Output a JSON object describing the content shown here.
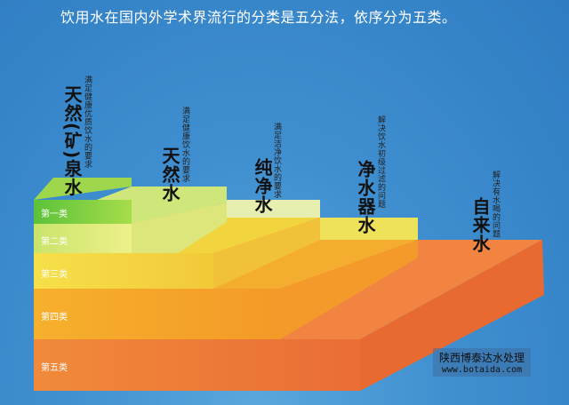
{
  "title": "饮用水在国内外学术界流行的分类是五分法，依序分为五类。",
  "levels": [
    {
      "label": "第一类",
      "name": "天然(矿)泉水",
      "desc": "满足健康优质饮水的要求",
      "color": "#7fcf3a"
    },
    {
      "label": "第二类",
      "name": "天然水",
      "desc": "满足健康饮水的要求",
      "color": "#d7e86a"
    },
    {
      "label": "第三类",
      "name": "纯净水",
      "desc": "满足洁净饮水的要求",
      "color": "#f3d83a"
    },
    {
      "label": "第四类",
      "name": "净水器水",
      "desc": "解决饮水初级过滤的问题",
      "color": "#f5a62a"
    },
    {
      "label": "第五类",
      "name": "自来水",
      "desc": "解决有水喝的问题",
      "color": "#ee7a3a"
    }
  ],
  "watermark": {
    "company": "陕西博泰达水处理",
    "url": "www.botaida.com"
  }
}
